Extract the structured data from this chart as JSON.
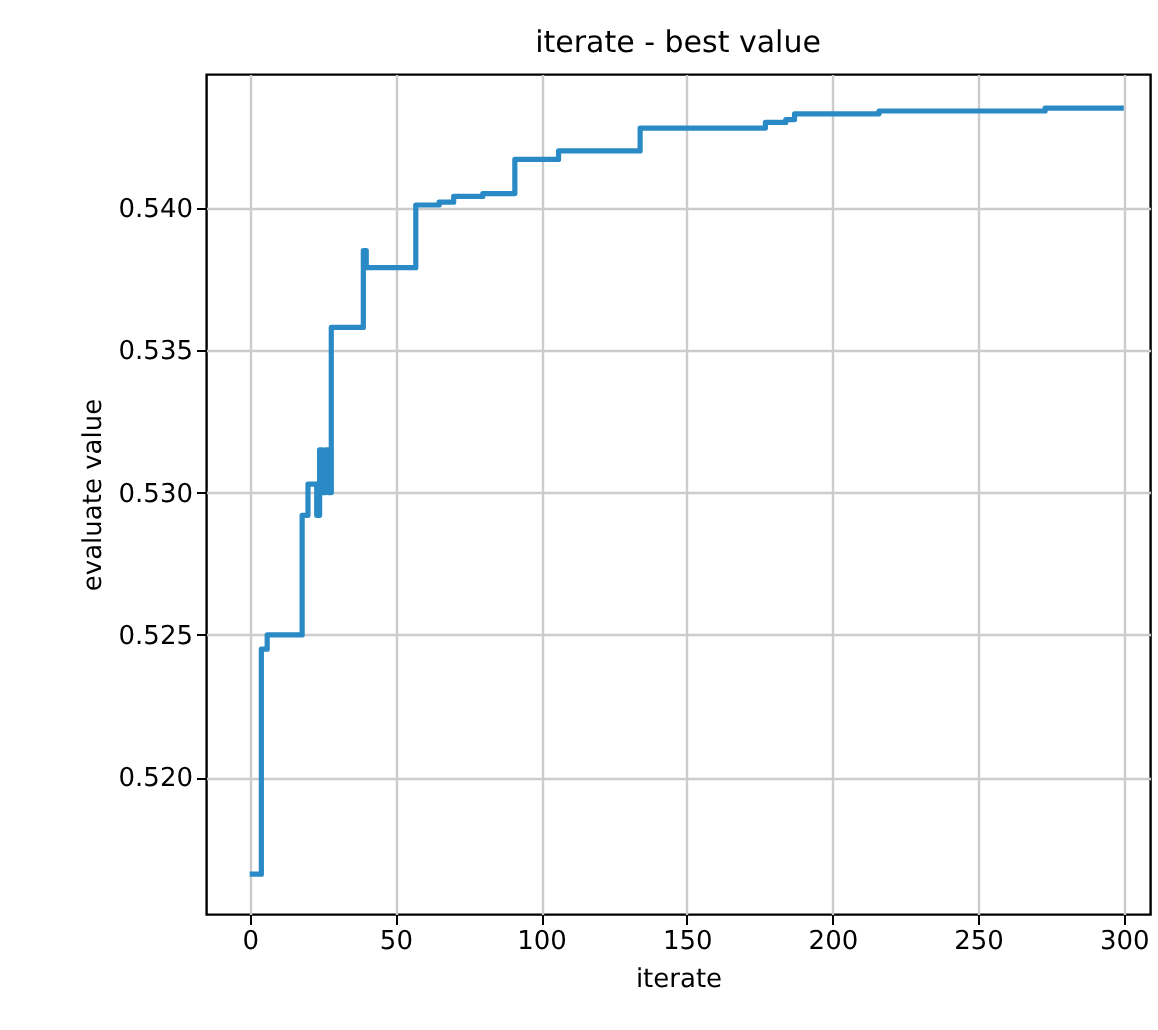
{
  "chart_data": {
    "type": "step",
    "title": "iterate - best value",
    "xlabel": "iterate",
    "ylabel": "evaluate value",
    "x": [
      0,
      3,
      4,
      6,
      18,
      20,
      23,
      24,
      25,
      26,
      27,
      28,
      38,
      39,
      40,
      56,
      57,
      65,
      70,
      80,
      91,
      106,
      134,
      177,
      184,
      187,
      216,
      273,
      300
    ],
    "series": [
      {
        "color": "#2a8ac6",
        "values": [
          0.5166,
          0.5166,
          0.5245,
          0.525,
          0.5292,
          0.5303,
          0.5292,
          0.5315,
          0.53,
          0.5315,
          0.53,
          0.5358,
          0.5358,
          0.5385,
          0.5379,
          0.5379,
          0.5401,
          0.5402,
          0.5404,
          0.5405,
          0.5417,
          0.542,
          0.5428,
          0.543,
          0.5431,
          0.5433,
          0.5434,
          0.5435,
          0.5435
        ]
      }
    ],
    "xlim": [
      -15,
      309
    ],
    "ylim": [
      0.5152,
      0.5447
    ],
    "xticks": [
      0,
      50,
      100,
      150,
      200,
      250,
      300
    ],
    "yticks": [
      {
        "value": 0.52,
        "label": "0.520"
      },
      0.525,
      {
        "value": 0.53,
        "label": "0.530"
      },
      0.535,
      {
        "value": 0.54,
        "label": "0.540"
      }
    ],
    "grid": true,
    "line_style": "solid"
  }
}
